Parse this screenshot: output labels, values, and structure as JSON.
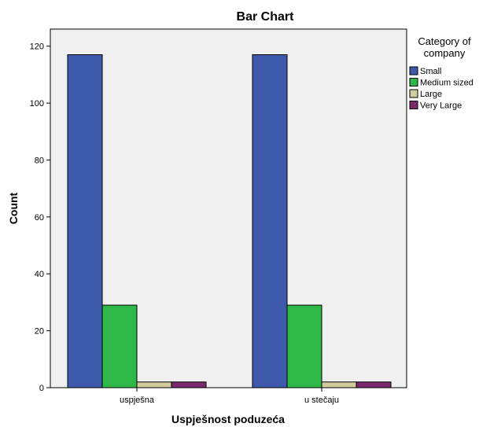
{
  "chart_data": {
    "type": "bar",
    "title": "Bar Chart",
    "xlabel": "Uspješnost poduzeća",
    "ylabel": "Count",
    "categories": [
      "uspješna",
      "u stečaju"
    ],
    "series": [
      {
        "name": "Small",
        "values": [
          117,
          117
        ],
        "color": "#3e58ac"
      },
      {
        "name": "Medium sized",
        "values": [
          29,
          29
        ],
        "color": "#2eb848"
      },
      {
        "name": "Large",
        "values": [
          2,
          2
        ],
        "color": "#d2cc9c"
      },
      {
        "name": "Very Large",
        "values": [
          2,
          2
        ],
        "color": "#7a2a6c"
      }
    ],
    "ylim": [
      0,
      126
    ],
    "yticks": [
      0,
      20,
      40,
      60,
      80,
      100,
      120
    ],
    "grid": false,
    "plot_background": "#f0f0f0",
    "legend": {
      "title_lines": [
        "Category of",
        "company"
      ],
      "placement": "right"
    }
  }
}
